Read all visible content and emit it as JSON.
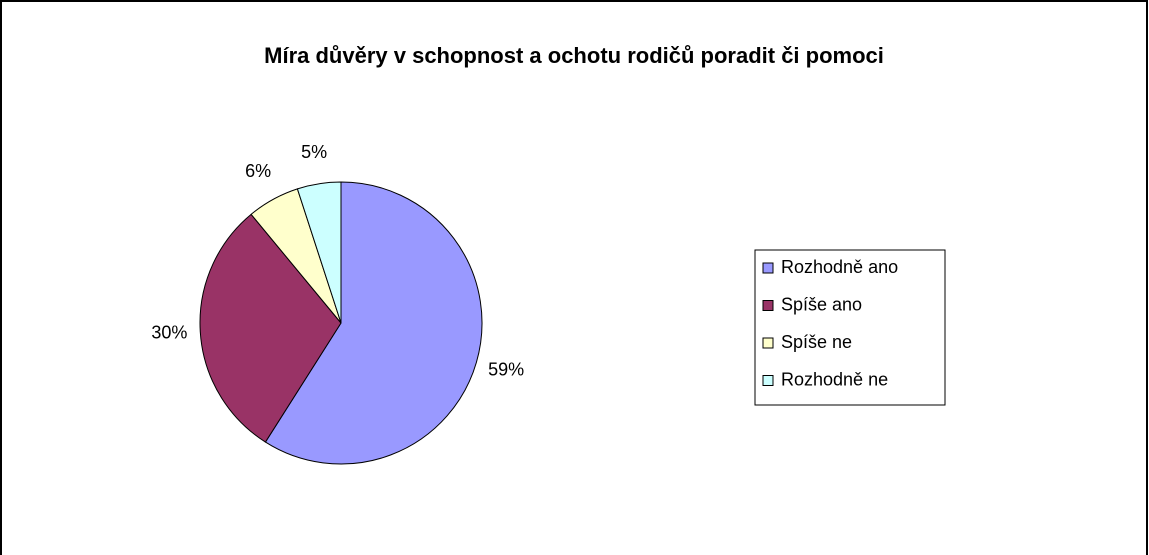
{
  "chart_data": {
    "type": "pie",
    "title": "Míra důvěry v schopnost a ochotu rodičů poradit či pomoci",
    "categories": [
      "Rozhodně ano",
      "Spíše ano",
      "Spíše ne",
      "Rozhodně ne"
    ],
    "values": [
      59,
      30,
      6,
      5
    ],
    "value_labels": [
      "59%",
      "30%",
      "6%",
      "5%"
    ],
    "colors": [
      "#9999ff",
      "#993366",
      "#ffffcc",
      "#ccffff"
    ],
    "legend": "right"
  }
}
